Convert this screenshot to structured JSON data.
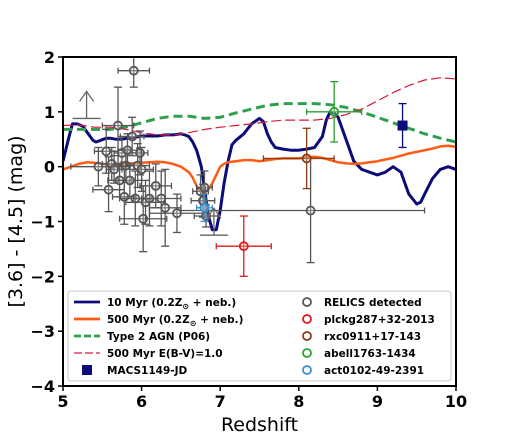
{
  "chart_data": {
    "type": "scatter",
    "xlabel": "Redshift",
    "ylabel": "[3.6] - [4.5] (mag)",
    "xlim": [
      5,
      10
    ],
    "ylim": [
      -4,
      2
    ],
    "x_ticks": [
      "5",
      "6",
      "7",
      "8",
      "9",
      "10"
    ],
    "y_ticks": [
      "−4",
      "−3",
      "−2",
      "−1",
      "0",
      "1",
      "2"
    ],
    "grid": false,
    "legend_position": "bottom",
    "colors": {
      "navy": "#0b0b7a",
      "orange": "#ff5b14",
      "green": "#2e9f4e",
      "crimson": "#d81b3c",
      "gray": "#555555",
      "red": "#e31a1c",
      "brown": "#8c3d11",
      "olive": "#2ca02c",
      "blue": "#3a8fd1",
      "arrow": "#666666"
    },
    "series": [
      {
        "name": "10 Myr (0.2Z⊙ + neb.)",
        "legend_tex": "10 Myr (0.2Z",
        "kind": "line",
        "color": "navy",
        "width": 3,
        "dash": "",
        "x": [
          5.0,
          5.06,
          5.12,
          5.18,
          5.25,
          5.32,
          5.38,
          5.42,
          5.48,
          5.55,
          5.6,
          5.68,
          5.75,
          5.82,
          5.9,
          6.0,
          6.1,
          6.2,
          6.3,
          6.4,
          6.5,
          6.55,
          6.6,
          6.65,
          6.7,
          6.73,
          6.76,
          6.8,
          6.85,
          6.9,
          6.95,
          7.0,
          7.05,
          7.1,
          7.15,
          7.2,
          7.3,
          7.4,
          7.5,
          7.55,
          7.6,
          7.65,
          7.7,
          7.8,
          7.9,
          8.0,
          8.1,
          8.2,
          8.3,
          8.35,
          8.4,
          8.45,
          8.5,
          8.55,
          8.6,
          8.65,
          8.7,
          8.8,
          8.9,
          9.0,
          9.1,
          9.2,
          9.3,
          9.4,
          9.5,
          9.55,
          9.6,
          9.7,
          9.8,
          9.9,
          10.0
        ],
        "y": [
          0.1,
          0.45,
          0.78,
          0.78,
          0.74,
          0.6,
          0.48,
          0.45,
          0.48,
          0.52,
          0.52,
          0.5,
          0.5,
          0.52,
          0.53,
          0.56,
          0.56,
          0.56,
          0.58,
          0.58,
          0.6,
          0.58,
          0.55,
          0.45,
          0.3,
          0.15,
          0.0,
          -0.4,
          -0.9,
          -1.15,
          -1.15,
          -0.8,
          -0.3,
          0.1,
          0.4,
          0.48,
          0.6,
          0.78,
          0.88,
          0.82,
          0.6,
          0.45,
          0.35,
          0.32,
          0.3,
          0.3,
          0.32,
          0.35,
          0.55,
          0.85,
          1.0,
          0.98,
          0.9,
          0.7,
          0.5,
          0.3,
          0.1,
          -0.05,
          -0.1,
          -0.15,
          -0.1,
          0.0,
          -0.1,
          -0.5,
          -0.68,
          -0.65,
          -0.5,
          -0.22,
          -0.05,
          0.0,
          -0.05
        ]
      },
      {
        "name": "500 Myr (0.2Z⊙ + neb.)",
        "legend_tex": "500 Myr (0.2Z",
        "kind": "line",
        "color": "orange",
        "width": 2.5,
        "dash": "",
        "x": [
          5.0,
          5.1,
          5.2,
          5.3,
          5.4,
          5.5,
          5.6,
          5.7,
          5.8,
          5.9,
          6.0,
          6.1,
          6.2,
          6.3,
          6.4,
          6.5,
          6.6,
          6.65,
          6.7,
          6.75,
          6.8,
          6.85,
          6.9,
          6.95,
          7.0,
          7.05,
          7.1,
          7.2,
          7.3,
          7.4,
          7.5,
          7.6,
          7.7,
          7.8,
          7.9,
          8.0,
          8.1,
          8.2,
          8.3,
          8.4,
          8.5,
          8.6,
          8.7,
          8.8,
          8.9,
          9.0,
          9.1,
          9.2,
          9.3,
          9.4,
          9.5,
          9.6,
          9.7,
          9.8,
          9.9,
          10.0
        ],
        "y": [
          -0.05,
          0.0,
          0.05,
          0.08,
          0.07,
          0.05,
          0.04,
          0.05,
          0.06,
          0.06,
          0.07,
          0.08,
          0.09,
          0.08,
          0.05,
          0.0,
          -0.1,
          -0.2,
          -0.35,
          -0.45,
          -0.48,
          -0.42,
          -0.3,
          -0.15,
          0.0,
          0.05,
          0.08,
          0.1,
          0.12,
          0.12,
          0.1,
          0.12,
          0.14,
          0.15,
          0.15,
          0.15,
          0.17,
          0.18,
          0.16,
          0.12,
          0.08,
          0.06,
          0.05,
          0.06,
          0.08,
          0.1,
          0.13,
          0.16,
          0.2,
          0.24,
          0.27,
          0.3,
          0.33,
          0.37,
          0.38,
          0.36
        ]
      },
      {
        "name": "Type 2 AGN (P06)",
        "kind": "line",
        "color": "green",
        "width": 3,
        "dash": "9,5",
        "x": [
          5.0,
          5.2,
          5.4,
          5.6,
          5.8,
          6.0,
          6.2,
          6.4,
          6.6,
          6.8,
          7.0,
          7.2,
          7.4,
          7.6,
          7.8,
          8.0,
          8.2,
          8.4,
          8.6,
          8.8,
          9.0,
          9.2,
          9.4,
          9.6,
          9.8,
          10.0
        ],
        "y": [
          0.68,
          0.68,
          0.68,
          0.68,
          0.72,
          0.8,
          0.88,
          0.92,
          0.92,
          0.88,
          0.9,
          0.98,
          1.05,
          1.12,
          1.15,
          1.15,
          1.15,
          1.13,
          1.08,
          1.0,
          0.9,
          0.8,
          0.7,
          0.6,
          0.52,
          0.45
        ]
      },
      {
        "name": "500 Myr E(B-V)=1.0",
        "kind": "line",
        "color": "crimson",
        "width": 1.2,
        "dash": "10,4",
        "x": [
          5.0,
          5.2,
          5.4,
          5.6,
          5.8,
          6.0,
          6.2,
          6.4,
          6.6,
          6.8,
          7.0,
          7.2,
          7.4,
          7.6,
          7.8,
          8.0,
          8.2,
          8.4,
          8.6,
          8.8,
          9.0,
          9.2,
          9.4,
          9.6,
          9.8,
          10.0
        ],
        "y": [
          0.75,
          0.76,
          0.72,
          0.72,
          0.68,
          0.62,
          0.58,
          0.58,
          0.62,
          0.68,
          0.72,
          0.75,
          0.78,
          0.82,
          0.85,
          0.85,
          0.85,
          0.88,
          0.95,
          1.05,
          1.2,
          1.35,
          1.48,
          1.58,
          1.62,
          1.6
        ]
      }
    ],
    "points": [
      {
        "group": "RELICS detected",
        "color": "gray",
        "marker": "open-circle",
        "data": [
          {
            "x": 5.45,
            "y": 0.0,
            "xerr": [
              0.35,
              0.35
            ],
            "yerr": [
              0.35,
              0.35
            ]
          },
          {
            "x": 5.55,
            "y": 0.28,
            "xerr": [
              0.15,
              0.15
            ],
            "yerr": [
              0.4,
              0.4
            ]
          },
          {
            "x": 5.58,
            "y": -0.42,
            "xerr": [
              0.2,
              0.2
            ],
            "yerr": [
              0.4,
              0.6
            ]
          },
          {
            "x": 5.62,
            "y": 0.05,
            "xerr": [
              0.12,
              0.12
            ],
            "yerr": [
              0.3,
              0.3
            ]
          },
          {
            "x": 5.65,
            "y": -0.05,
            "xerr": [
              0.1,
              0.1
            ],
            "yerr": [
              0.25,
              0.25
            ]
          },
          {
            "x": 5.7,
            "y": 0.75,
            "xerr": [
              0.2,
              0.2
            ],
            "yerr": [
              0.7,
              0.7
            ]
          },
          {
            "x": 5.72,
            "y": -0.25,
            "xerr": [
              0.15,
              0.15
            ],
            "yerr": [
              0.3,
              0.3
            ]
          },
          {
            "x": 5.75,
            "y": 0.25,
            "xerr": [
              0.1,
              0.1
            ],
            "yerr": [
              0.3,
              0.3
            ]
          },
          {
            "x": 5.78,
            "y": -0.55,
            "xerr": [
              0.15,
              0.15
            ],
            "yerr": [
              0.5,
              0.5
            ]
          },
          {
            "x": 5.8,
            "y": 0.02,
            "xerr": [
              0.1,
              0.1
            ],
            "yerr": [
              0.3,
              0.3
            ]
          },
          {
            "x": 5.82,
            "y": 0.3,
            "xerr": [
              0.12,
              0.12
            ],
            "yerr": [
              0.3,
              0.3
            ]
          },
          {
            "x": 5.85,
            "y": -0.25,
            "xerr": [
              0.15,
              0.15
            ],
            "yerr": [
              0.3,
              0.3
            ]
          },
          {
            "x": 5.88,
            "y": 0.55,
            "xerr": [
              0.15,
              0.15
            ],
            "yerr": [
              0.35,
              0.35
            ]
          },
          {
            "x": 5.9,
            "y": 1.75,
            "xerr": [
              0.2,
              0.2
            ],
            "yerr": [
              0.3,
              0.3
            ]
          },
          {
            "x": 5.92,
            "y": -0.58,
            "xerr": [
              0.2,
              0.2
            ],
            "yerr": [
              0.5,
              0.5
            ]
          },
          {
            "x": 5.95,
            "y": 0.02,
            "xerr": [
              0.15,
              0.15
            ],
            "yerr": [
              0.4,
              0.4
            ]
          },
          {
            "x": 5.98,
            "y": 0.25,
            "xerr": [
              0.1,
              0.1
            ],
            "yerr": [
              0.4,
              0.4
            ]
          },
          {
            "x": 6.0,
            "y": -0.05,
            "xerr": [
              0.15,
              0.15
            ],
            "yerr": [
              0.4,
              0.4
            ]
          },
          {
            "x": 6.02,
            "y": -0.95,
            "xerr": [
              0.3,
              0.3
            ],
            "yerr": [
              0.6,
              0.6
            ]
          },
          {
            "x": 6.05,
            "y": -0.65,
            "xerr": [
              0.25,
              0.25
            ],
            "yerr": [
              0.4,
              0.4
            ]
          },
          {
            "x": 6.1,
            "y": -0.58,
            "xerr": [
              0.2,
              0.2
            ],
            "yerr": [
              0.5,
              0.5
            ]
          },
          {
            "x": 6.18,
            "y": -0.35,
            "xerr": [
              0.2,
              0.2
            ],
            "yerr": [
              0.4,
              0.4
            ]
          },
          {
            "x": 6.25,
            "y": -0.58,
            "xerr": [
              0.25,
              0.25
            ],
            "yerr": [
              0.5,
              0.5
            ]
          },
          {
            "x": 6.3,
            "y": -0.75,
            "xerr": [
              0.2,
              0.2
            ],
            "yerr": [
              0.7,
              0.7
            ]
          },
          {
            "x": 6.45,
            "y": -0.85,
            "xerr": [
              0.35,
              0.35
            ],
            "yerr": [
              0.35,
              0.35
            ]
          },
          {
            "x": 6.75,
            "y": -0.45,
            "xerr": [
              0.1,
              0.1
            ],
            "yerr": [
              0.3,
              0.3
            ]
          },
          {
            "x": 6.78,
            "y": -0.62,
            "xerr": [
              0.15,
              0.15
            ],
            "yerr": [
              0.3,
              0.3
            ]
          },
          {
            "x": 6.8,
            "y": -0.38,
            "xerr": [
              0.1,
              0.1
            ],
            "yerr": [
              0.3,
              0.3
            ]
          },
          {
            "x": 6.82,
            "y": -0.9,
            "xerr": [
              0.15,
              0.15
            ],
            "yerr": [
              0.2,
              0.2
            ]
          },
          {
            "x": 8.15,
            "y": -0.8,
            "xerr": [
              1.65,
              1.45
            ],
            "yerr": [
              0.95,
              0.95
            ]
          }
        ]
      },
      {
        "group": "plckg287+32-2013",
        "color": "red",
        "marker": "open-circle",
        "data": [
          {
            "x": 7.3,
            "y": -1.45,
            "xerr": [
              0.35,
              0.35
            ],
            "yerr": [
              0.55,
              0.55
            ]
          }
        ]
      },
      {
        "group": "rxc0911+17-143",
        "color": "brown",
        "marker": "open-circle",
        "data": [
          {
            "x": 8.1,
            "y": 0.15,
            "xerr": [
              0.55,
              0.35
            ],
            "yerr": [
              0.55,
              0.55
            ]
          }
        ]
      },
      {
        "group": "abell1763-1434",
        "color": "olive",
        "marker": "open-circle",
        "data": [
          {
            "x": 8.45,
            "y": 1.0,
            "xerr": [
              0.35,
              0.35
            ],
            "yerr": [
              0.55,
              0.55
            ]
          }
        ]
      },
      {
        "group": "act0102-49-2391",
        "color": "blue",
        "marker": "open-circle",
        "data": [
          {
            "x": 6.8,
            "y": -0.75,
            "xerr": [
              0.1,
              0.1
            ],
            "yerr": [
              0.25,
              0.25
            ]
          }
        ]
      },
      {
        "group": "MACS1149-JD",
        "color": "navy",
        "marker": "filled-square",
        "data": [
          {
            "x": 9.32,
            "y": 0.75,
            "xerr": [
              0,
              0
            ],
            "yerr": [
              0.4,
              0.4
            ]
          }
        ]
      }
    ],
    "upper_limits": [
      {
        "x": 5.3,
        "y": 0.88,
        "color": "arrow"
      },
      {
        "x": 6.92,
        "y": -1.25,
        "color": "arrow"
      }
    ],
    "legend_left": [
      {
        "label": "10 Myr (0.2Z",
        "sub": "⊙",
        "suffix": " + neb.)",
        "style": "line",
        "color": "navy"
      },
      {
        "label": "500 Myr (0.2Z",
        "sub": "⊙",
        "suffix": " + neb.)",
        "style": "line",
        "color": "orange"
      },
      {
        "label": "Type 2 AGN (P06)",
        "sub": "",
        "suffix": "",
        "style": "dashed",
        "color": "green"
      },
      {
        "label": "500 Myr E(B-V)=1.0",
        "sub": "",
        "suffix": "",
        "style": "thin-dashed",
        "color": "crimson"
      },
      {
        "label": "MACS1149-JD",
        "sub": "",
        "suffix": "",
        "style": "square",
        "color": "navy"
      }
    ],
    "legend_right": [
      {
        "label": "RELICS detected",
        "color": "gray"
      },
      {
        "label": "plckg287+32-2013",
        "color": "red"
      },
      {
        "label": "rxc0911+17-143",
        "color": "brown"
      },
      {
        "label": "abell1763-1434",
        "color": "olive"
      },
      {
        "label": "act0102-49-2391",
        "color": "blue"
      }
    ]
  }
}
